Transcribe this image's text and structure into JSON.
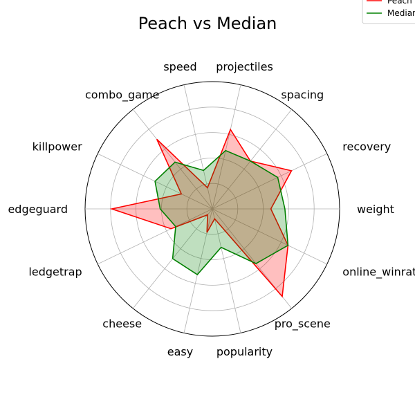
{
  "chart_data": {
    "type": "radar",
    "title": "Peach vs Median",
    "categories": [
      "weight",
      "recovery",
      "spacing",
      "projectiles",
      "speed",
      "combo_game",
      "killpower",
      "edgeguard",
      "ledgetrap",
      "cheese",
      "easy",
      "popularity",
      "pro_scene",
      "online_winrate"
    ],
    "rmax": 1.0,
    "grid_rings": [
      0.2,
      0.4,
      0.6,
      0.8,
      1.0
    ],
    "grid": true,
    "legend_position": "top-right",
    "series": [
      {
        "name": "Peach",
        "color": "#ff0000",
        "fill": "#ff0000",
        "fill_opacity": 0.25,
        "values": [
          0.46,
          0.69,
          0.48,
          0.64,
          0.17,
          0.7,
          0.27,
          0.79,
          0.36,
          0.06,
          0.19,
          0.08,
          0.88,
          0.66
        ]
      },
      {
        "name": "Median",
        "color": "#008000",
        "fill": "#008000",
        "fill_opacity": 0.25,
        "values": [
          0.57,
          0.57,
          0.48,
          0.47,
          0.31,
          0.47,
          0.5,
          0.41,
          0.32,
          0.5,
          0.53,
          0.31,
          0.55,
          0.66
        ]
      }
    ]
  }
}
